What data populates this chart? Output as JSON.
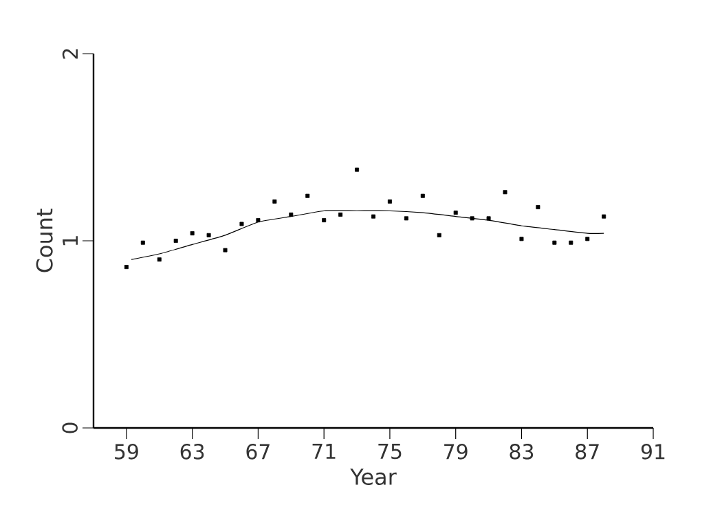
{
  "chart_data": {
    "type": "scatter",
    "xlabel": "Year",
    "ylabel": "Count",
    "xlim": [
      57,
      91
    ],
    "ylim": [
      0,
      2
    ],
    "xticks": [
      59,
      63,
      67,
      71,
      75,
      79,
      83,
      87,
      91
    ],
    "yticks": [
      0,
      1,
      2
    ],
    "grid": false,
    "marker": "square",
    "series": [
      {
        "color": "#000000",
        "x": [
          59,
          60,
          61,
          62,
          63,
          64,
          65,
          66,
          67,
          68,
          69,
          70,
          71,
          72,
          73,
          74,
          75,
          76,
          77,
          78,
          79,
          80,
          81,
          82,
          83,
          84,
          85,
          86,
          87,
          88
        ],
        "values": [
          0.86,
          0.99,
          0.9,
          1.0,
          1.04,
          1.03,
          0.95,
          1.09,
          1.11,
          1.21,
          1.14,
          1.24,
          1.11,
          1.14,
          1.38,
          1.13,
          1.21,
          1.12,
          1.24,
          1.03,
          1.15,
          1.12,
          1.12,
          1.26,
          1.01,
          1.18,
          0.99,
          0.99,
          1.01,
          1.13
        ]
      },
      {
        "type": "line",
        "color": "#000000",
        "marker": "none",
        "line_style": "solid",
        "x": [
          59.3,
          61,
          63,
          65,
          67,
          69,
          71,
          73,
          75,
          77,
          79,
          81,
          83,
          85,
          87,
          88
        ],
        "values": [
          0.9,
          0.93,
          0.98,
          1.03,
          1.1,
          1.13,
          1.16,
          1.16,
          1.16,
          1.15,
          1.13,
          1.11,
          1.08,
          1.06,
          1.04,
          1.04
        ]
      }
    ]
  }
}
